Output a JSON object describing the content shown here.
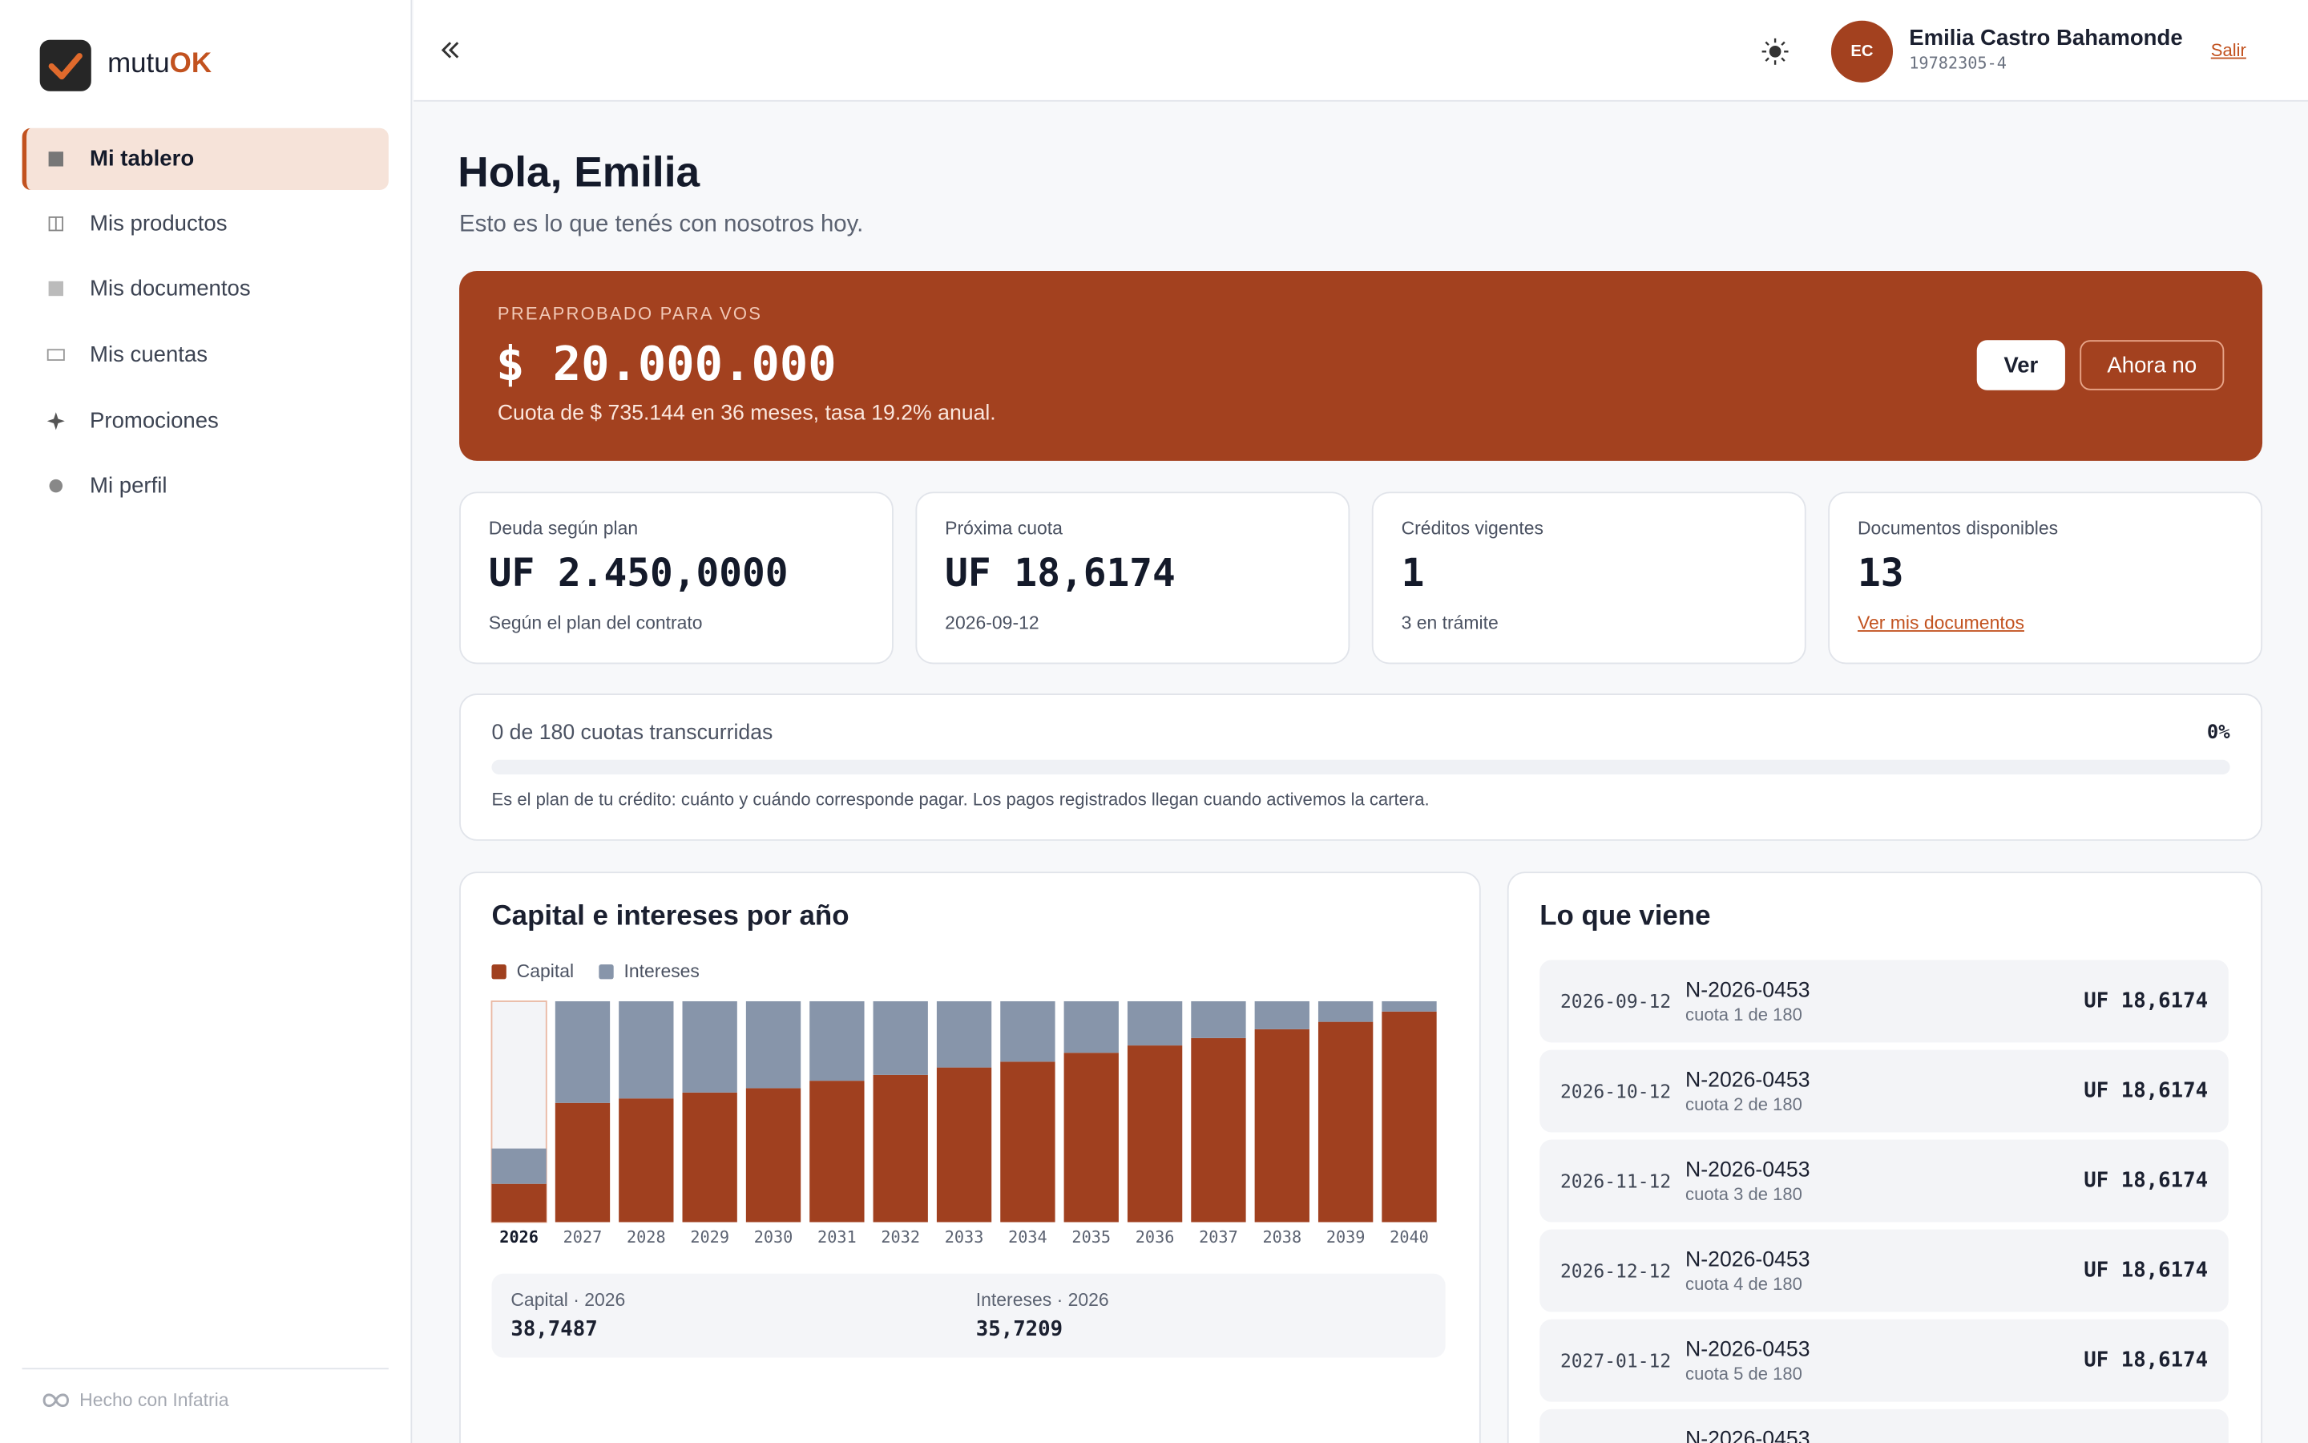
{
  "sidebar": {
    "brand_prefix": "mutu",
    "brand_suffix": "OK",
    "nav": [
      "Mi tablero",
      "Mis productos",
      "Mis documentos",
      "Mis cuentas",
      "Promociones",
      "Mi perfil"
    ],
    "footer": "Hecho con Infatria"
  },
  "header": {
    "avatar": "EC",
    "user_name": "Emilia Castro Bahamonde",
    "user_id": "19782305-4",
    "logout": "Salir"
  },
  "greeting": {
    "title": "Hola, Emilia",
    "subtitle": "Esto es lo que tenés con nosotros hoy."
  },
  "offer": {
    "eyebrow": "PREAPROBADO PARA VOS",
    "amount": "$ 20.000.000",
    "detail": "Cuota de $ 735.144 en 36 meses, tasa 19.2% anual.",
    "primary": "Ver",
    "secondary": "Ahora no"
  },
  "stats": [
    {
      "label": "Deuda según plan",
      "value": "UF 2.450,0000",
      "note": "Según el plan del contrato"
    },
    {
      "label": "Próxima cuota",
      "value": "UF 18,6174",
      "note": "2026-09-12"
    },
    {
      "label": "Créditos vigentes",
      "value": "1",
      "note": "3 en trámite"
    },
    {
      "label": "Documentos disponibles",
      "value": "13",
      "link": "Ver mis documentos"
    }
  ],
  "progress": {
    "label": "0 de 180 cuotas transcurridas",
    "value": 0,
    "value_label": "0%",
    "note": "Es el plan de tu crédito: cuánto y cuándo corresponde pagar. Los pagos registrados llegan cuando activemos la cartera."
  },
  "chart_data": {
    "type": "bar",
    "stacked": true,
    "title": "Capital e intereses por año",
    "categories": [
      "2026",
      "2027",
      "2028",
      "2029",
      "2030",
      "2031",
      "2032",
      "2033",
      "2034",
      "2035",
      "2036",
      "2037",
      "2038",
      "2039",
      "2040"
    ],
    "selected": "2026",
    "series": [
      {
        "name": "Capital",
        "color": "#a0401f",
        "values": [
          38.7487,
          120.6,
          125.1,
          131.1,
          135.5,
          143.0,
          148.9,
          156.4,
          162.3,
          171.3,
          178.7,
          186.2,
          195.1,
          202.6,
          213.0
        ],
        "value_labels": [
          "38,7487",
          null,
          null,
          null,
          null,
          null,
          null,
          null,
          null,
          null,
          null,
          null,
          null,
          null,
          null
        ]
      },
      {
        "name": "Intereses",
        "color": "#8795aa",
        "values": [
          35.7209,
          102.8,
          98.3,
          92.3,
          87.9,
          80.4,
          74.5,
          67.0,
          61.1,
          52.1,
          44.7,
          37.2,
          28.3,
          20.8,
          10.4
        ],
        "value_labels": [
          "35,7209",
          null,
          null,
          null,
          null,
          null,
          null,
          null,
          null,
          null,
          null,
          null,
          null,
          null,
          null
        ]
      }
    ],
    "summary_labels": [
      "Capital · 2026",
      "Intereses · 2026"
    ]
  },
  "upcoming": {
    "title": "Lo que viene",
    "items": [
      {
        "date": "2026-09-12",
        "loan": "N-2026-0453",
        "installment": "cuota 1 de 180",
        "amount": "UF 18,6174"
      },
      {
        "date": "2026-10-12",
        "loan": "N-2026-0453",
        "installment": "cuota 2 de 180",
        "amount": "UF 18,6174"
      },
      {
        "date": "2026-11-12",
        "loan": "N-2026-0453",
        "installment": "cuota 3 de 180",
        "amount": "UF 18,6174"
      },
      {
        "date": "2026-12-12",
        "loan": "N-2026-0453",
        "installment": "cuota 4 de 180",
        "amount": "UF 18,6174"
      },
      {
        "date": "2027-01-12",
        "loan": "N-2026-0453",
        "installment": "cuota 5 de 180",
        "amount": "UF 18,6174"
      },
      {
        "loan": "N-2026-0453"
      }
    ]
  }
}
